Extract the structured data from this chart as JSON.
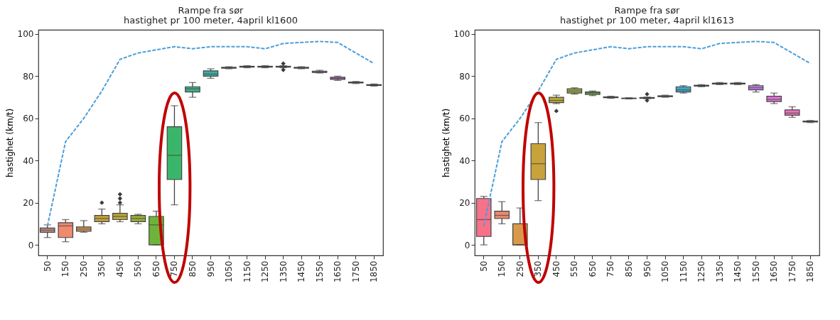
{
  "chart_data": [
    {
      "type": "box",
      "title": "Rampe fra sør",
      "subtitle": "hastighet pr 100 meter, 4april kl1600",
      "ylabel": "hastighet (km/t)",
      "categories": [
        "50",
        "150",
        "250",
        "350",
        "450",
        "550",
        "650",
        "750",
        "850",
        "950",
        "1050",
        "1150",
        "1250",
        "1350",
        "1450",
        "1550",
        "1650",
        "1750",
        "1850"
      ],
      "ylim": [
        -5,
        102
      ],
      "yticks": [
        0,
        20,
        40,
        60,
        80,
        100
      ],
      "grid": false,
      "line_style": "dashed",
      "marker": "none",
      "colors": [
        "#c98a86",
        "#f08a6e",
        "#d89a4a",
        "#c8a23b",
        "#b9a83a",
        "#9aaf3a",
        "#6eb43a",
        "#3ab66a",
        "#39b08f",
        "#3aaea3",
        "#3aacb4",
        "#3ba8c6",
        "#4aa0dc",
        "#7a96ea",
        "#a288ea",
        "#c27ee7",
        "#dc74d8",
        "#ed72bc",
        "#f3789e"
      ],
      "boxes": [
        {
          "low": 3.5,
          "q1": 6,
          "median": 7,
          "q3": 8,
          "high": 9.5
        },
        {
          "low": 1.5,
          "q1": 3.5,
          "median": 9,
          "q3": 10.5,
          "high": 12
        },
        {
          "low": 6,
          "q1": 6.5,
          "median": 7.5,
          "q3": 8.5,
          "high": 11.5
        },
        {
          "low": 10,
          "q1": 11,
          "median": 12.5,
          "q3": 14,
          "high": 17,
          "outliers": [
            20
          ]
        },
        {
          "low": 11,
          "q1": 12,
          "median": 13.5,
          "q3": 15,
          "high": 19,
          "outliers": [
            20,
            22,
            24
          ]
        },
        {
          "low": 10,
          "q1": 11,
          "median": 12.5,
          "q3": 14,
          "high": 14.5
        },
        {
          "low": 0,
          "q1": 0,
          "median": 9.5,
          "q3": 13.5,
          "high": 16
        },
        {
          "low": 19,
          "q1": 31,
          "median": 42.5,
          "q3": 56,
          "high": 66
        },
        {
          "low": 70,
          "q1": 72.5,
          "median": 74,
          "q3": 75,
          "high": 77
        },
        {
          "low": 79,
          "q1": 80,
          "median": 81,
          "q3": 82.5,
          "high": 83.5
        },
        {
          "low": 83.5,
          "q1": 83.8,
          "median": 84,
          "q3": 84.2,
          "high": 84.5
        },
        {
          "low": 84,
          "q1": 84.3,
          "median": 84.5,
          "q3": 84.7,
          "high": 85
        },
        {
          "low": 84,
          "q1": 84.3,
          "median": 84.5,
          "q3": 84.7,
          "high": 85
        },
        {
          "low": 84,
          "q1": 84.3,
          "median": 84.5,
          "q3": 84.7,
          "high": 85,
          "outliers": [
            83,
            86
          ]
        },
        {
          "low": 83.5,
          "q1": 83.8,
          "median": 84,
          "q3": 84.2,
          "high": 84.5
        },
        {
          "low": 81.5,
          "q1": 81.8,
          "median": 82,
          "q3": 82.4,
          "high": 82.8
        },
        {
          "low": 78,
          "q1": 78.5,
          "median": 79,
          "q3": 79.5,
          "high": 80
        },
        {
          "low": 76.5,
          "q1": 76.8,
          "median": 77,
          "q3": 77.2,
          "high": 77.5
        },
        {
          "low": 75.3,
          "q1": 75.6,
          "median": 75.8,
          "q3": 76,
          "high": 76.3
        }
      ],
      "series": [
        {
          "type": "line",
          "color": "#4c9ed9",
          "values": [
            9,
            49,
            60,
            73,
            88,
            91,
            92.5,
            94,
            93,
            94,
            94,
            94,
            93,
            95.5,
            96,
            96.5,
            96,
            91,
            86
          ]
        }
      ]
    },
    {
      "type": "box",
      "title": "Rampe fra sør",
      "subtitle": "hastighet pr 100 meter, 4april kl1613",
      "ylabel": "hastighet (km/t)",
      "categories": [
        "50",
        "150",
        "250",
        "350",
        "450",
        "550",
        "650",
        "750",
        "850",
        "950",
        "1050",
        "1150",
        "1250",
        "1350",
        "1450",
        "1550",
        "1650",
        "1750",
        "1850"
      ],
      "ylim": [
        -5,
        102
      ],
      "yticks": [
        0,
        20,
        40,
        60,
        80,
        100
      ],
      "grid": false,
      "line_style": "dashed",
      "marker": "none",
      "colors": [
        "#f77189",
        "#e98a6e",
        "#d89a4a",
        "#c8a23b",
        "#b9a83a",
        "#9aaf3a",
        "#6eb43a",
        "#3ab66a",
        "#39b08f",
        "#3aaea3",
        "#3aacb4",
        "#3ba8c6",
        "#4aa0dc",
        "#7a96ea",
        "#a288ea",
        "#c27ee7",
        "#dc74d8",
        "#ed72bc",
        "#f3789e"
      ],
      "boxes": [
        {
          "low": 0,
          "q1": 4,
          "median": 12,
          "q3": 22,
          "high": 23
        },
        {
          "low": 10,
          "q1": 12.5,
          "median": 14,
          "q3": 16,
          "high": 20.5
        },
        {
          "low": 0,
          "q1": 0,
          "median": 0,
          "q3": 10,
          "high": 17.5
        },
        {
          "low": 21,
          "q1": 31,
          "median": 38.5,
          "q3": 48,
          "high": 58
        },
        {
          "low": 67,
          "q1": 67.5,
          "median": 68.5,
          "q3": 70,
          "high": 71,
          "outliers": [
            63.5
          ]
        },
        {
          "low": 71.5,
          "q1": 72,
          "median": 73,
          "q3": 74,
          "high": 74.5
        },
        {
          "low": 70.8,
          "q1": 71.3,
          "median": 72,
          "q3": 72.5,
          "high": 73
        },
        {
          "low": 69.5,
          "q1": 69.8,
          "median": 70,
          "q3": 70.2,
          "high": 70.5
        },
        {
          "low": 69.2,
          "q1": 69.4,
          "median": 69.5,
          "q3": 69.6,
          "high": 69.8
        },
        {
          "low": 69.3,
          "q1": 69.5,
          "median": 69.7,
          "q3": 69.9,
          "high": 70.1,
          "outliers": [
            68.5,
            71.5
          ]
        },
        {
          "low": 70,
          "q1": 70.3,
          "median": 70.5,
          "q3": 70.7,
          "high": 71
        },
        {
          "low": 72,
          "q1": 72.5,
          "median": 73.5,
          "q3": 75,
          "high": 75.5
        },
        {
          "low": 75,
          "q1": 75.3,
          "median": 75.5,
          "q3": 75.7,
          "high": 76
        },
        {
          "low": 76,
          "q1": 76.3,
          "median": 76.5,
          "q3": 76.7,
          "high": 77
        },
        {
          "low": 76,
          "q1": 76.3,
          "median": 76.5,
          "q3": 76.7,
          "high": 77
        },
        {
          "low": 72.5,
          "q1": 73.5,
          "median": 74.5,
          "q3": 75.5,
          "high": 76
        },
        {
          "low": 67,
          "q1": 68,
          "median": 69,
          "q3": 70.5,
          "high": 72
        },
        {
          "low": 60.5,
          "q1": 61.5,
          "median": 62.5,
          "q3": 64,
          "high": 65.5
        },
        {
          "low": 58,
          "q1": 58.3,
          "median": 58.5,
          "q3": 58.7,
          "high": 59
        }
      ],
      "series": [
        {
          "type": "line",
          "color": "#4c9ed9",
          "values": [
            9,
            49,
            60,
            73,
            88,
            91,
            92.5,
            94,
            93,
            94,
            94,
            94,
            93,
            95.5,
            96,
            96.5,
            96,
            91,
            86
          ]
        }
      ]
    }
  ]
}
